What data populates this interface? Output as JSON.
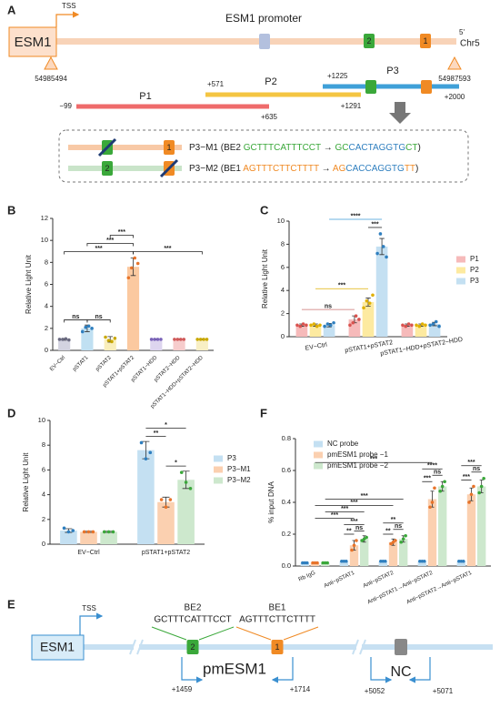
{
  "figure_a": {
    "panel": "A",
    "title": "ESM1 promoter",
    "tss": "TSS",
    "gene": "ESM1",
    "strand": "5'",
    "chromosome": "Chr5",
    "start": "54985494",
    "end": "54987593",
    "boxes": [
      "2",
      "1"
    ],
    "fragments": [
      {
        "name": "P1",
        "start": "−99",
        "end": "+635"
      },
      {
        "name": "P2",
        "start": "+571",
        "end": "+1291"
      },
      {
        "name": "P3",
        "start": "+1225",
        "end": "+2000"
      }
    ],
    "mutants": [
      {
        "parts": [
          {
            "text": "P3−M1 (BE2 ",
            "color": "#222222"
          },
          {
            "text": "GCTTTCATTTCCT",
            "color": "#3aa83a"
          },
          {
            "text": " → ",
            "color": "#222222"
          },
          {
            "text": "GC",
            "color": "#3aa83a"
          },
          {
            "text": "CACTAGGTG",
            "color": "#2f7fbf"
          },
          {
            "text": "CT",
            "color": "#3aa83a"
          },
          {
            "text": ")",
            "color": "#222222"
          }
        ]
      },
      {
        "parts": [
          {
            "text": "P3−M2 (BE1 ",
            "color": "#222222"
          },
          {
            "text": "AGTTTCTTCTTTT",
            "color": "#f08a24"
          },
          {
            "text": " → ",
            "color": "#222222"
          },
          {
            "text": "AG",
            "color": "#f08a24"
          },
          {
            "text": "CACCAGGTG",
            "color": "#2f7fbf"
          },
          {
            "text": "TT",
            "color": "#f08a24"
          },
          {
            "text": ")",
            "color": "#222222"
          }
        ]
      }
    ]
  },
  "chart_data": [
    {
      "panel": "B",
      "type": "bar",
      "ylabel": "Relative Light Unit",
      "categories": [
        "EV−Ctrl",
        "pSTAT1",
        "pSTAT2",
        "pSTAT1+pSTAT2",
        "pSTAT1−HDD",
        "pSTAT2−HDD",
        "pSTAT1−HDD+pSTAT2−HDD"
      ],
      "values": [
        1.0,
        2.0,
        1.0,
        7.6,
        1.0,
        1.0,
        1.0
      ],
      "errors": [
        0.08,
        0.3,
        0.25,
        0.8,
        0.05,
        0.05,
        0.05
      ],
      "points": [
        [
          1.0,
          1.0,
          1.05,
          0.95
        ],
        [
          1.7,
          2.1,
          2.2,
          2.0
        ],
        [
          1.2,
          0.9,
          0.8,
          1.1
        ],
        [
          6.6,
          7.5,
          8.4,
          7.9
        ],
        [
          1.0,
          1.0,
          1.0,
          1.0
        ],
        [
          1.0,
          1.0,
          1.0,
          1.0
        ],
        [
          1.0,
          1.0,
          1.0,
          1.0
        ]
      ],
      "colors": [
        "#d3d3e0",
        "#c0e0f2",
        "#f9eebb",
        "#fbc9a0",
        "#ddd5ef",
        "#f6cccc",
        "#f8efc4"
      ],
      "point_colors": [
        "#6a6a80",
        "#2f7fbf",
        "#c9a800",
        "#e8742a",
        "#7a63b8",
        "#d05a5a",
        "#c9a800"
      ],
      "ylim": [
        0,
        12
      ],
      "yticks": [
        0,
        2,
        4,
        6,
        8,
        10,
        12
      ],
      "bracket_ticks": true,
      "annotations": [
        {
          "from": 0,
          "to": 1,
          "label": "ns"
        },
        {
          "from": 1,
          "to": 2,
          "label": "ns"
        },
        {
          "from": 0,
          "to": 3,
          "label": "***"
        },
        {
          "from": 3,
          "to": 6,
          "label": "***"
        },
        {
          "from": 1,
          "to": 3,
          "label": "***"
        },
        {
          "from": 2,
          "to": 3,
          "label": "***"
        }
      ]
    },
    {
      "panel": "C",
      "type": "bar",
      "ylabel": "Relative Light Unit",
      "categories": [
        "EV−Ctrl",
        "pSTAT1+pSTAT2",
        "pSTAT1−HDD+pSTAT2−HDD"
      ],
      "series": [
        {
          "name": "P1",
          "color": "#f6baba",
          "point_color": "#d9534f",
          "values": [
            1.0,
            1.5,
            1.0
          ],
          "errors": [
            0.1,
            0.3,
            0.1
          ],
          "points": [
            [
              1.0,
              0.9,
              1.1,
              1.0
            ],
            [
              1.0,
              1.2,
              1.8,
              1.5
            ],
            [
              1.0,
              0.9,
              1.1,
              1.0
            ]
          ]
        },
        {
          "name": "P2",
          "color": "#fdeaa0",
          "point_color": "#e0b000",
          "values": [
            1.0,
            3.0,
            1.0
          ],
          "errors": [
            0.1,
            0.35,
            0.1
          ],
          "points": [
            [
              1.0,
              1.1,
              0.9,
              1.0
            ],
            [
              2.5,
              3.1,
              2.9,
              3.6
            ],
            [
              1.0,
              0.9,
              1.1,
              1.0
            ]
          ]
        },
        {
          "name": "P3",
          "color": "#c4e0f2",
          "point_color": "#2f7fbf",
          "values": [
            1.0,
            7.8,
            1.1
          ],
          "errors": [
            0.15,
            0.7,
            0.15
          ],
          "points": [
            [
              0.9,
              1.1,
              1.0,
              1.2
            ],
            [
              7.2,
              8.9,
              7.8,
              6.9
            ],
            [
              1.0,
              1.1,
              1.3,
              0.9
            ]
          ]
        }
      ],
      "ylim": [
        0,
        10
      ],
      "yticks": [
        0,
        2,
        4,
        6,
        8,
        10
      ],
      "legend": "right",
      "bracket_ticks": false,
      "annotations": [
        {
          "from": [
            0,
            0
          ],
          "to": [
            1,
            0
          ],
          "label": "ns",
          "color": "#c9706f"
        },
        {
          "from": [
            0,
            1
          ],
          "to": [
            1,
            1
          ],
          "label": "***",
          "color": "#e0b000"
        },
        {
          "from": [
            1,
            1
          ],
          "to": [
            1,
            2
          ],
          "label": "***",
          "color": "#222222"
        },
        {
          "from": [
            0,
            2
          ],
          "to": [
            1,
            2
          ],
          "label": "****",
          "color": "#3b9ad9"
        }
      ]
    },
    {
      "panel": "D",
      "type": "bar",
      "ylabel": "Relative Light Unit",
      "categories": [
        "EV−Ctrl",
        "pSTAT1+pSTAT2"
      ],
      "series": [
        {
          "name": "P3",
          "color": "#c4e0f2",
          "point_color": "#2f7fbf",
          "values": [
            1.1,
            7.6
          ],
          "errors": [
            0.15,
            0.7
          ],
          "points": [
            [
              1.3,
              1.0,
              1.1
            ],
            [
              8.2,
              6.9,
              7.4
            ]
          ]
        },
        {
          "name": "P3−M1",
          "color": "#fbd0b0",
          "point_color": "#e8742a",
          "values": [
            1.0,
            3.4
          ],
          "errors": [
            0.05,
            0.4
          ],
          "points": [
            [
              1.0,
              1.0,
              1.0
            ],
            [
              3.6,
              3.0,
              3.6
            ]
          ]
        },
        {
          "name": "P3−M2",
          "color": "#cde8cd",
          "point_color": "#3aa83a",
          "values": [
            1.0,
            5.2
          ],
          "errors": [
            0.05,
            0.7
          ],
          "points": [
            [
              1.0,
              1.0,
              1.0
            ],
            [
              5.8,
              5.0,
              4.5
            ]
          ]
        }
      ],
      "ylim": [
        0,
        10
      ],
      "yticks": [
        0,
        2,
        4,
        6,
        8,
        10
      ],
      "legend": "right",
      "bracket_ticks": false,
      "annotations": [
        {
          "from": [
            1,
            0
          ],
          "to": [
            1,
            1
          ],
          "label": "**"
        },
        {
          "from": [
            1,
            1
          ],
          "to": [
            1,
            2
          ],
          "label": "*"
        },
        {
          "from": [
            1,
            0
          ],
          "to": [
            1,
            2
          ],
          "label": "*"
        }
      ]
    },
    {
      "panel": "F",
      "type": "bar",
      "ylabel": "% input DNA",
      "categories": [
        "Rb IgG",
        "Anti−pSTAT1",
        "Anti−pSTAT2",
        "Anti−pSTAT1→Anti−pSTAT2",
        "Anti−pSTAT2→Anti−pSTAT1"
      ],
      "series": [
        {
          "name": "NC probe",
          "color": "#c4e0f2",
          "point_color": "#2f7fbf",
          "values": [
            0.02,
            0.03,
            0.03,
            0.03,
            0.03
          ],
          "errors": [
            0.003,
            0.003,
            0.003,
            0.003,
            0.003
          ],
          "points": [
            [
              0.02,
              0.02,
              0.02
            ],
            [
              0.03,
              0.03,
              0.03
            ],
            [
              0.03,
              0.03,
              0.03
            ],
            [
              0.03,
              0.03,
              0.03
            ],
            [
              0.03,
              0.03,
              0.03
            ]
          ]
        },
        {
          "name": "pmESM1 probe −1",
          "color": "#fbd0b0",
          "point_color": "#e8742a",
          "values": [
            0.02,
            0.13,
            0.15,
            0.42,
            0.45
          ],
          "errors": [
            0.003,
            0.03,
            0.02,
            0.05,
            0.04
          ],
          "points": [
            [
              0.02,
              0.02,
              0.02
            ],
            [
              0.1,
              0.13,
              0.16
            ],
            [
              0.14,
              0.15,
              0.16
            ],
            [
              0.37,
              0.4,
              0.49
            ],
            [
              0.4,
              0.45,
              0.5
            ]
          ]
        },
        {
          "name": "pmESM1 probe −2",
          "color": "#cde8cd",
          "point_color": "#3aa83a",
          "values": [
            0.02,
            0.17,
            0.17,
            0.5,
            0.5
          ],
          "errors": [
            0.003,
            0.02,
            0.02,
            0.03,
            0.04
          ],
          "points": [
            [
              0.02,
              0.02,
              0.02
            ],
            [
              0.16,
              0.17,
              0.18
            ],
            [
              0.15,
              0.17,
              0.19
            ],
            [
              0.47,
              0.5,
              0.53
            ],
            [
              0.46,
              0.5,
              0.55
            ]
          ]
        }
      ],
      "ylim": [
        0,
        0.8
      ],
      "yticks": [
        {
          "value": 0,
          "label": "0.0"
        },
        0.2,
        0.4,
        0.6,
        0.8
      ],
      "legend": "upper left",
      "bracket_ticks": false,
      "annotations": [
        {
          "from": [
            1,
            0
          ],
          "to": [
            1,
            1
          ],
          "label": "**"
        },
        {
          "from": [
            1,
            1
          ],
          "to": [
            1,
            2
          ],
          "label": "ns"
        },
        {
          "from": [
            1,
            0
          ],
          "to": [
            1,
            2
          ],
          "label": "***"
        },
        {
          "from": [
            2,
            0
          ],
          "to": [
            2,
            1
          ],
          "label": "**"
        },
        {
          "from": [
            2,
            1
          ],
          "to": [
            2,
            2
          ],
          "label": "ns"
        },
        {
          "from": [
            2,
            0
          ],
          "to": [
            2,
            2
          ],
          "label": "**"
        },
        {
          "from": [
            3,
            0
          ],
          "to": [
            3,
            1
          ],
          "label": "***"
        },
        {
          "from": [
            3,
            1
          ],
          "to": [
            3,
            2
          ],
          "label": "ns"
        },
        {
          "from": [
            3,
            0
          ],
          "to": [
            3,
            2
          ],
          "label": "****"
        },
        {
          "from": [
            4,
            0
          ],
          "to": [
            4,
            1
          ],
          "label": "***"
        },
        {
          "from": [
            4,
            1
          ],
          "to": [
            4,
            2
          ],
          "label": "ns"
        },
        {
          "from": [
            4,
            0
          ],
          "to": [
            4,
            2
          ],
          "label": "***"
        },
        {
          "from": [
            0,
            1
          ],
          "to": [
            1,
            1
          ],
          "label": "***"
        },
        {
          "from": [
            0,
            2
          ],
          "to": [
            1,
            2
          ],
          "label": "***"
        },
        {
          "from": [
            0,
            1
          ],
          "to": [
            2,
            1
          ],
          "label": "***"
        },
        {
          "from": [
            0,
            2
          ],
          "to": [
            2,
            2
          ],
          "label": "***"
        },
        {
          "from": [
            0,
            1
          ],
          "to": [
            3,
            1
          ],
          "label": "***"
        }
      ]
    }
  ],
  "figure_e": {
    "panel": "E",
    "gene": "ESM1",
    "tss": "TSS",
    "sites": [
      {
        "box": "2",
        "name": "BE2",
        "sequence": "GCTTTCATTTCCT",
        "color": "#3aa83a"
      },
      {
        "box": "1",
        "name": "BE1",
        "sequence": "AGTTTCTTCTTTT",
        "color": "#f08a24"
      }
    ],
    "probe": "pmESM1",
    "control": "NC",
    "primers": [
      "+1459",
      "+1714",
      "+5052",
      "+5071"
    ]
  }
}
